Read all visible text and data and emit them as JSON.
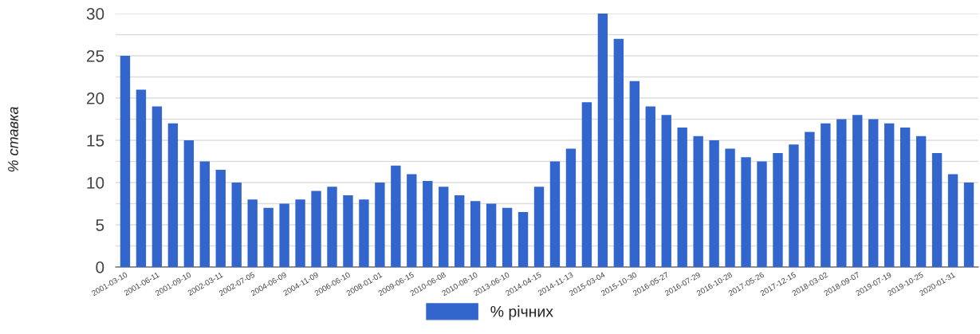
{
  "chart_data": {
    "type": "bar",
    "ylabel": "% ставка",
    "categories": [
      "2001-03-10",
      null,
      "2001-06-11",
      null,
      "2001-09-10",
      null,
      "2002-03-11",
      null,
      "2002-07-05",
      null,
      "2004-06-09",
      null,
      "2004-11-09",
      null,
      "2006-06-10",
      null,
      "2008-01-01",
      null,
      "2009-06-15",
      null,
      "2010-06-08",
      null,
      "2010-08-10",
      null,
      "2013-06-10",
      null,
      "2014-04-15",
      null,
      "2014-11-13",
      null,
      "2015-03-04",
      null,
      "2015-10-30",
      null,
      "2016-05-27",
      null,
      "2016-07-29",
      null,
      "2016-10-28",
      null,
      "2017-05-26",
      null,
      "2017-12-15",
      null,
      "2018-03-02",
      null,
      "2018-09-07",
      null,
      "2019-07-19",
      null,
      "2019-10-25",
      null,
      "2020-01-31",
      null
    ],
    "series": [
      {
        "name": "% річних",
        "color": "#3366cc",
        "values": [
          25,
          21,
          19,
          17,
          15,
          12.5,
          11.5,
          10,
          8,
          7,
          7.5,
          8,
          9,
          9.5,
          8.5,
          8,
          10,
          12,
          11,
          10.2,
          9.5,
          8.5,
          7.8,
          7.5,
          7,
          6.5,
          9.5,
          12.5,
          14,
          19.5,
          30,
          27,
          22,
          19,
          18,
          16.5,
          15.5,
          15,
          14,
          13,
          12.5,
          13.5,
          14.5,
          16,
          17,
          17.5,
          18,
          17.5,
          17,
          16.5,
          15.5,
          13.5,
          11,
          10
        ]
      }
    ],
    "ylim": [
      0,
      30
    ],
    "yticks": [
      0,
      {
        "value": 2.5,
        "label": null
      },
      5,
      {
        "value": 7.5,
        "label": null
      },
      10,
      {
        "value": 12.5,
        "label": null
      },
      15,
      {
        "value": 17.5,
        "label": null
      },
      20,
      {
        "value": 22.5,
        "label": null
      },
      25,
      {
        "value": 27.5,
        "label": null
      },
      30
    ],
    "grid": "y",
    "legend": "bottom"
  }
}
